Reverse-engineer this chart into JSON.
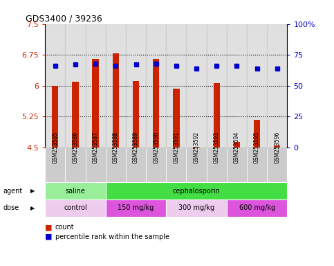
{
  "title": "GDS3400 / 39236",
  "samples": [
    "GSM253585",
    "GSM253586",
    "GSM253587",
    "GSM253588",
    "GSM253589",
    "GSM253590",
    "GSM253591",
    "GSM253592",
    "GSM253593",
    "GSM253594",
    "GSM253595",
    "GSM253596"
  ],
  "count_values": [
    6.0,
    6.1,
    6.65,
    6.78,
    6.12,
    6.65,
    5.93,
    4.52,
    6.06,
    4.63,
    5.18,
    4.55
  ],
  "percentile_values": [
    66,
    67,
    68,
    66,
    67,
    68,
    66,
    64,
    66,
    66,
    64,
    64
  ],
  "bar_color": "#cc2200",
  "dot_color": "#0000cc",
  "ylim_left": [
    4.5,
    7.5
  ],
  "ylim_right": [
    0,
    100
  ],
  "yticks_left": [
    4.5,
    5.25,
    6.0,
    6.75,
    7.5
  ],
  "yticks_left_labels": [
    "4.5",
    "5.25",
    "6",
    "6.75",
    "7.5"
  ],
  "yticks_right": [
    0,
    25,
    50,
    75,
    100
  ],
  "yticks_right_labels": [
    "0",
    "25",
    "50",
    "75",
    "100%"
  ],
  "hlines": [
    5.25,
    6.0,
    6.75
  ],
  "agent_groups": [
    {
      "label": "saline",
      "start": 0,
      "end": 3,
      "color": "#99ee99"
    },
    {
      "label": "cephalosporin",
      "start": 3,
      "end": 12,
      "color": "#44dd44"
    }
  ],
  "dose_groups": [
    {
      "label": "control",
      "start": 0,
      "end": 3,
      "color": "#eeccee"
    },
    {
      "label": "150 mg/kg",
      "start": 3,
      "end": 6,
      "color": "#dd55dd"
    },
    {
      "label": "300 mg/kg",
      "start": 6,
      "end": 9,
      "color": "#eeccee"
    },
    {
      "label": "600 mg/kg",
      "start": 9,
      "end": 12,
      "color": "#dd55dd"
    }
  ],
  "legend_count_color": "#cc2200",
  "legend_dot_color": "#0000cc",
  "bar_bottom": 4.5,
  "bg_color": "#ffffff",
  "sample_bg_color": "#cccccc"
}
